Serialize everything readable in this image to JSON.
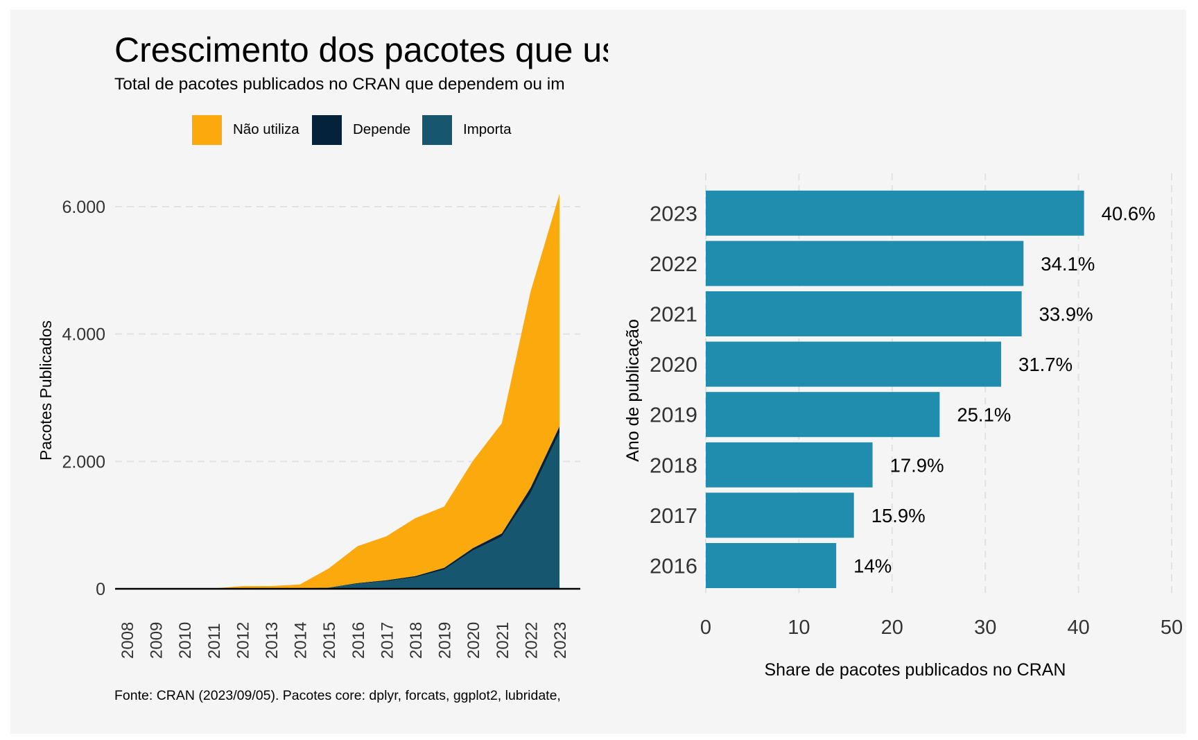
{
  "title": "Crescimento dos pacotes que usa",
  "subtitle": "Total de pacotes publicados no CRAN que dependem ou im",
  "caption": "Fonte: CRAN (2023/09/05). Pacotes core: dplyr, forcats, ggplot2, lubridate,",
  "colors": {
    "nao_utiliza": "#fba90d",
    "depende": "#04233a",
    "importa": "#16566f",
    "bars": "#208daf",
    "background": "#f5f5f5"
  },
  "legend": [
    {
      "label": "Não utiliza",
      "color": "#fba90d"
    },
    {
      "label": "Depende",
      "color": "#04233a"
    },
    {
      "label": "Importa",
      "color": "#16566f"
    }
  ],
  "chart_data": [
    {
      "type": "area",
      "stacked": true,
      "ylabel": "Pacotes Publicados",
      "xlabel": "",
      "x": [
        2008,
        2009,
        2010,
        2011,
        2012,
        2013,
        2014,
        2015,
        2016,
        2017,
        2018,
        2019,
        2020,
        2021,
        2022,
        2023
      ],
      "x_tick_labels": [
        "2008",
        "2009",
        "2010",
        "2011",
        "2012",
        "2013",
        "2014",
        "2015",
        "2016",
        "2017",
        "2018",
        "2019",
        "2020",
        "2021",
        "2022",
        "2023"
      ],
      "y_tick_labels": [
        "0",
        "2.000",
        "4.000",
        "6.000"
      ],
      "y_ticks": [
        0,
        2000,
        4000,
        6000
      ],
      "ylim": [
        0,
        6200
      ],
      "grid": "horizontal dashed",
      "legend_position": "top",
      "series": [
        {
          "name": "Importa",
          "color": "#16566f",
          "values": [
            0,
            0,
            0,
            0,
            2,
            3,
            5,
            15,
            80,
            120,
            180,
            300,
            600,
            820,
            1500,
            2450
          ]
        },
        {
          "name": "Depende",
          "color": "#04233a",
          "values": [
            0,
            0,
            0,
            0,
            1,
            1,
            2,
            5,
            10,
            15,
            20,
            30,
            40,
            50,
            90,
            100
          ]
        },
        {
          "name": "Não utiliza",
          "color": "#fba90d",
          "values": [
            0,
            0,
            0,
            5,
            40,
            40,
            60,
            300,
            580,
            690,
            910,
            960,
            1370,
            1730,
            3080,
            3650
          ]
        }
      ]
    },
    {
      "type": "bar",
      "orientation": "horizontal",
      "xlabel": "Share de pacotes publicados no CRAN",
      "ylabel": "Ano de publicação",
      "categories": [
        "2016",
        "2017",
        "2018",
        "2019",
        "2020",
        "2021",
        "2022",
        "2023"
      ],
      "values": [
        14.0,
        15.9,
        17.9,
        25.1,
        31.7,
        33.9,
        34.1,
        40.6
      ],
      "value_labels": [
        "14%",
        "15.9%",
        "17.9%",
        "25.1%",
        "31.7%",
        "33.9%",
        "34.1%",
        "40.6%"
      ],
      "x_ticks": [
        0,
        10,
        20,
        30,
        40,
        50
      ],
      "x_tick_labels": [
        "0",
        "10",
        "20",
        "30",
        "40",
        "50"
      ],
      "xlim": [
        0,
        50
      ],
      "grid": "vertical dashed",
      "color": "#208daf"
    }
  ]
}
